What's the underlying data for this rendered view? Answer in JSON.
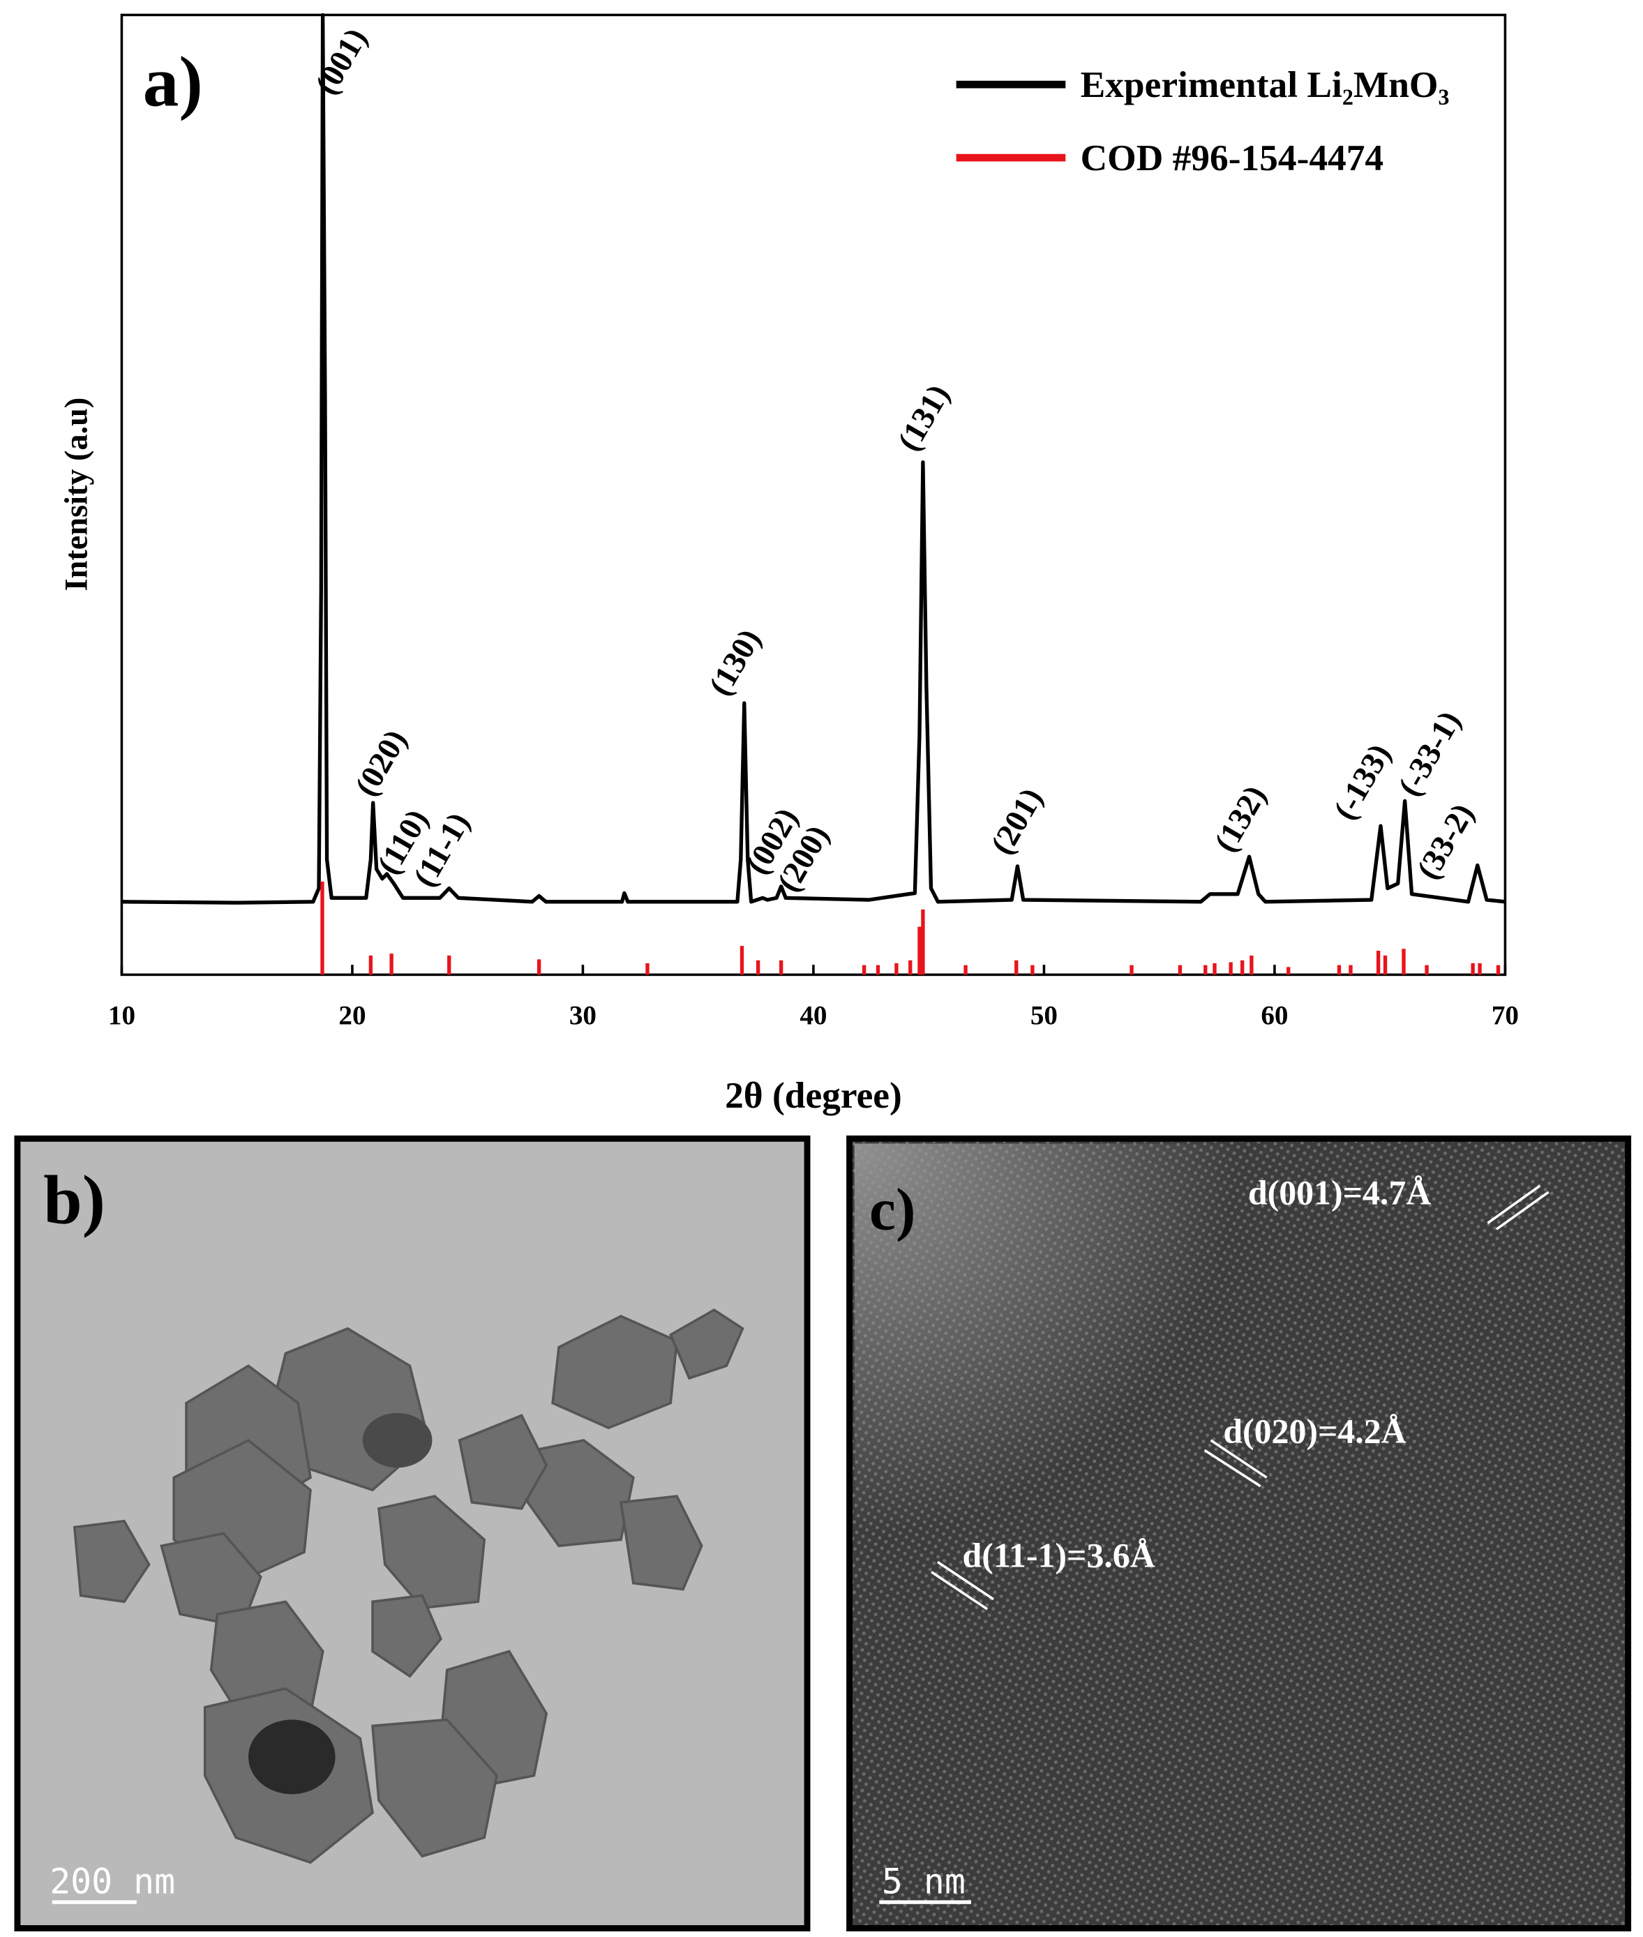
{
  "chart_data": {
    "type": "line",
    "panel_label": "a)",
    "xlabel": "2θ (degree)",
    "ylabel": "Intensity (a.u)",
    "xlim": [
      10,
      70
    ],
    "xticks": [
      10,
      20,
      30,
      40,
      50,
      60,
      70
    ],
    "ylim": [
      0,
      100
    ],
    "legend": "upper right",
    "series": [
      {
        "name": "Experimental Li₂MnO₃",
        "color": "#000000",
        "type": "line",
        "x": [
          10,
          15,
          18.3,
          18.55,
          18.65,
          18.72,
          18.82,
          18.9,
          19.1,
          20.6,
          20.8,
          20.9,
          21.05,
          21.3,
          21.5,
          21.8,
          22.2,
          23.8,
          24.2,
          24.6,
          27.8,
          28.1,
          28.4,
          31.7,
          31.8,
          31.95,
          36.7,
          36.85,
          37.0,
          37.15,
          37.3,
          37.8,
          38.0,
          38.4,
          38.6,
          38.8,
          42.4,
          44.4,
          44.6,
          44.75,
          44.9,
          45.1,
          45.4,
          48.6,
          48.85,
          49.1,
          56.8,
          57.2,
          58.4,
          58.9,
          59.3,
          59.6,
          64.2,
          64.6,
          64.9,
          65.35,
          65.65,
          65.95,
          68.4,
          68.8,
          69.2,
          70
        ],
        "values": [
          7.6,
          7.5,
          7.6,
          9,
          40,
          100,
          60,
          12,
          8,
          8,
          12,
          17.9,
          11,
          10,
          10.5,
          9.5,
          8,
          8,
          9,
          8,
          7.6,
          8.2,
          7.6,
          7.6,
          8.5,
          7.6,
          7.6,
          12,
          28.3,
          12,
          7.6,
          8,
          7.8,
          8,
          9.2,
          8,
          7.8,
          8.5,
          25,
          53.4,
          30,
          9,
          7.6,
          7.8,
          11.3,
          7.8,
          7.6,
          8.4,
          8.4,
          12.3,
          8.4,
          7.6,
          7.8,
          15.5,
          9,
          9.5,
          18.1,
          8.4,
          7.6,
          11.4,
          7.8,
          7.6
        ]
      },
      {
        "name": "COD #96-154-4474",
        "color": "#e8141c",
        "type": "stick",
        "x": [
          18.7,
          20.8,
          21.7,
          24.2,
          28.1,
          32.8,
          36.9,
          37.6,
          38.6,
          42.2,
          42.8,
          43.6,
          44.2,
          44.6,
          44.75,
          46.6,
          48.8,
          49.5,
          53.8,
          55.9,
          57.0,
          57.4,
          58.1,
          58.6,
          59.0,
          60.6,
          62.8,
          63.3,
          64.5,
          64.8,
          65.6,
          66.6,
          68.6,
          68.9,
          69.7
        ],
        "values": [
          9.7,
          2,
          2.2,
          2,
          1.6,
          1.2,
          3,
          1.5,
          1.5,
          1,
          1,
          1.2,
          1.5,
          5,
          6.8,
          1,
          1.5,
          1,
          1,
          1,
          1,
          1.2,
          1.3,
          1.5,
          2,
          0.8,
          1,
          1,
          2.5,
          2,
          2.7,
          1,
          1.2,
          1.2,
          1
        ]
      }
    ],
    "annotations": [
      "(001)",
      "(020)",
      "(110)",
      "(11-1)",
      "(130)",
      "(002)",
      "(200)",
      "(131)",
      "(201)",
      "(132)",
      "(-133)",
      "(-33-1)",
      "(33-2)"
    ]
  },
  "panel_b": {
    "label": "b)",
    "scale_bar": "200 nm"
  },
  "panel_c": {
    "label": "c)",
    "scale_bar": "5 nm",
    "annotations": [
      "d(001)=4.7Å",
      "d(020)=4.2Å",
      "d(11-1)=3.6Å"
    ]
  }
}
